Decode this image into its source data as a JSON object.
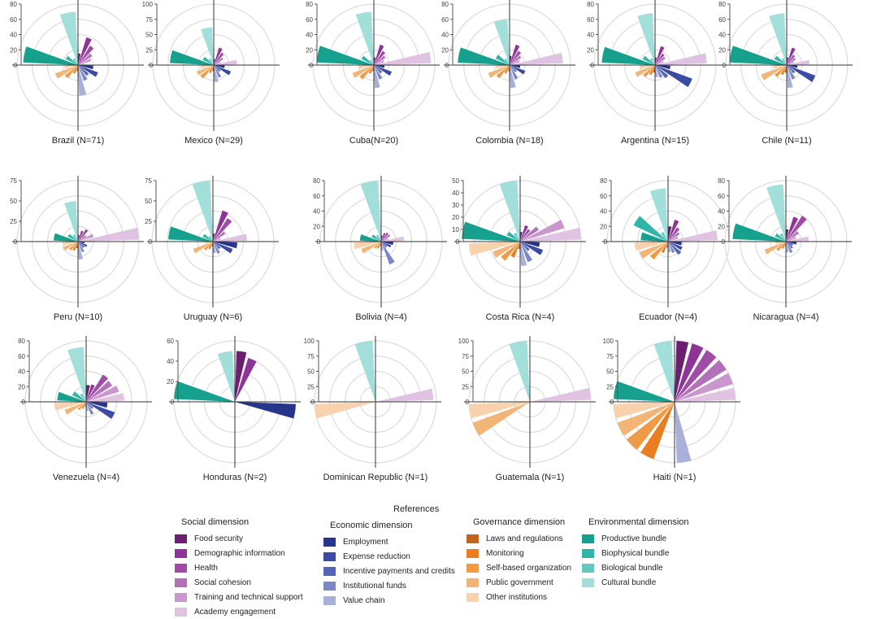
{
  "chart_data": {
    "type": "radial-bar",
    "title": "References",
    "category_groups": [
      {
        "name": "Social dimension",
        "categories": [
          {
            "label": "Food security",
            "color": "#6b1f6e"
          },
          {
            "label": "Demographic information",
            "color": "#8e3497"
          },
          {
            "label": "Health",
            "color": "#a04ca6"
          },
          {
            "label": "Social cohesion",
            "color": "#b46fb9"
          },
          {
            "label": "Training and technical support",
            "color": "#c996cd"
          },
          {
            "label": "Academy engagement",
            "color": "#e0c3e2"
          }
        ]
      },
      {
        "name": "Economic dimension",
        "categories": [
          {
            "label": "Employment",
            "color": "#27348b"
          },
          {
            "label": "Expense reduction",
            "color": "#3b4aa3"
          },
          {
            "label": "Incentive payments and credits",
            "color": "#5564b4"
          },
          {
            "label": "Institutional funds",
            "color": "#7c87c6"
          },
          {
            "label": "Value chain",
            "color": "#a9b0da"
          }
        ]
      },
      {
        "name": "Governance dimension",
        "categories": [
          {
            "label": "Laws and regulations",
            "color": "#c0641f"
          },
          {
            "label": "Monitoring",
            "color": "#e97d1f"
          },
          {
            "label": "Self-based organization",
            "color": "#ef9a45"
          },
          {
            "label": "Public government",
            "color": "#f3b577"
          },
          {
            "label": "Other institutions",
            "color": "#f8d2ac"
          }
        ]
      },
      {
        "name": "Environmental dimension",
        "categories": [
          {
            "label": "Productive bundle",
            "color": "#16a08e"
          },
          {
            "label": "Biophysical bundle",
            "color": "#2fb6a8"
          },
          {
            "label": "Biological bundle",
            "color": "#62c8c0"
          },
          {
            "label": "Cultural bundle",
            "color": "#a2dfdb"
          }
        ]
      }
    ],
    "panels": [
      {
        "label": "Brazil (N=71)",
        "ticks": [
          "80",
          "60",
          "40",
          "20",
          "0"
        ],
        "ymax": 80,
        "values": {
          "social": [
            15,
            38,
            30,
            22,
            18,
            8
          ],
          "economic": [
            20,
            28,
            18,
            22,
            40
          ],
          "governance": [
            8,
            12,
            22,
            32,
            18
          ],
          "environmental": [
            72,
            18,
            10,
            70
          ]
        }
      },
      {
        "label": "Mexico (N=29)",
        "ticks": [
          "100",
          "75",
          "50",
          "25",
          "0"
        ],
        "ymax": 100,
        "values": {
          "social": [
            10,
            30,
            24,
            18,
            12,
            38
          ],
          "economic": [
            18,
            30,
            14,
            22,
            28
          ],
          "governance": [
            10,
            14,
            28,
            30,
            22
          ],
          "environmental": [
            72,
            20,
            12,
            62
          ]
        }
      },
      {
        "label": "Cuba(N=20)",
        "ticks": [
          "80",
          "60",
          "40",
          "20",
          "0"
        ],
        "ymax": 80,
        "values": {
          "social": [
            10,
            28,
            22,
            18,
            14,
            75
          ],
          "economic": [
            14,
            25,
            14,
            20,
            30
          ],
          "governance": [
            8,
            12,
            24,
            30,
            20
          ],
          "environmental": [
            75,
            18,
            8,
            70
          ]
        }
      },
      {
        "label": "Colombia (N=18)",
        "ticks": [
          "80",
          "60",
          "40",
          "20",
          "0"
        ],
        "ymax": 80,
        "values": {
          "social": [
            12,
            28,
            22,
            18,
            14,
            70
          ],
          "economic": [
            14,
            22,
            12,
            20,
            30
          ],
          "governance": [
            8,
            12,
            22,
            30,
            18
          ],
          "environmental": [
            68,
            20,
            10,
            60
          ]
        }
      },
      {
        "label": "Argentina (N=15)",
        "ticks": [
          "80",
          "60",
          "40",
          "20",
          "0"
        ],
        "ymax": 80,
        "values": {
          "social": [
            10,
            26,
            18,
            16,
            12,
            68
          ],
          "economic": [
            20,
            52,
            22,
            18,
            16
          ],
          "governance": [
            10,
            14,
            20,
            28,
            20
          ],
          "environmental": [
            70,
            18,
            10,
            68
          ]
        }
      },
      {
        "label": "Chile (N=11)",
        "ticks": [
          "80",
          "60",
          "40",
          "20",
          "0"
        ],
        "ymax": 80,
        "values": {
          "social": [
            10,
            24,
            16,
            14,
            10,
            30
          ],
          "economic": [
            14,
            40,
            14,
            20,
            30
          ],
          "governance": [
            10,
            14,
            20,
            36,
            18
          ],
          "environmental": [
            75,
            18,
            10,
            68
          ]
        }
      },
      {
        "label": "Peru (N=10)",
        "ticks": [
          "75",
          "50",
          "25",
          "0"
        ],
        "ymax": 75,
        "values": {
          "social": [
            8,
            14,
            18,
            12,
            20,
            75
          ],
          "economic": [
            8,
            12,
            10,
            14,
            22
          ],
          "governance": [
            8,
            12,
            14,
            20,
            18
          ],
          "environmental": [
            30,
            14,
            10,
            50
          ]
        }
      },
      {
        "label": "Uruguay (N=6)",
        "ticks": [
          "75",
          "50",
          "25",
          "0"
        ],
        "ymax": 75,
        "values": {
          "social": [
            10,
            40,
            34,
            18,
            10,
            42
          ],
          "economic": [
            30,
            26,
            12,
            16,
            14
          ],
          "governance": [
            6,
            10,
            14,
            26,
            10
          ],
          "environmental": [
            55,
            14,
            8,
            80
          ]
        }
      },
      {
        "label": "Bolivia (N=4)",
        "ticks": [
          "80",
          "60",
          "40",
          "20",
          "0"
        ],
        "ymax": 80,
        "values": {
          "social": [
            8,
            12,
            14,
            14,
            10,
            30
          ],
          "economic": [
            16,
            14,
            10,
            32,
            12
          ],
          "governance": [
            6,
            10,
            12,
            28,
            36
          ],
          "environmental": [
            28,
            14,
            10,
            80
          ]
        }
      },
      {
        "label": "Costa Rica (N=4)",
        "ticks": [
          "50",
          "40",
          "30",
          "20",
          "10",
          "0"
        ],
        "ymax": 50,
        "values": {
          "social": [
            8,
            14,
            12,
            18,
            38,
            50
          ],
          "economic": [
            16,
            20,
            10,
            18,
            20
          ],
          "governance": [
            6,
            14,
            20,
            24,
            42
          ],
          "environmental": [
            48,
            12,
            8,
            50
          ]
        }
      },
      {
        "label": "Ecuador (N=4)",
        "ticks": [
          "80",
          "60",
          "40",
          "20",
          "0"
        ],
        "ymax": 80,
        "values": {
          "social": [
            20,
            30,
            22,
            18,
            14,
            65
          ],
          "economic": [
            18,
            20,
            22,
            16,
            14
          ],
          "governance": [
            8,
            16,
            30,
            40,
            44
          ],
          "environmental": [
            36,
            50,
            14,
            70
          ]
        }
      },
      {
        "label": "Nicaragua (N=4)",
        "ticks": [
          "80",
          "60",
          "40",
          "20",
          "0"
        ],
        "ymax": 80,
        "values": {
          "social": [
            16,
            34,
            40,
            20,
            14,
            30
          ],
          "economic": [
            14,
            10,
            12,
            16,
            14
          ],
          "governance": [
            6,
            10,
            16,
            30,
            14
          ],
          "environmental": [
            70,
            16,
            12,
            75
          ]
        }
      },
      {
        "label": "Venezuela (N=4)",
        "ticks": [
          "80",
          "60",
          "40",
          "20",
          "0"
        ],
        "ymax": 80,
        "values": {
          "social": [
            22,
            24,
            42,
            40,
            45,
            50
          ],
          "economic": [
            28,
            40,
            12,
            18,
            12
          ],
          "governance": [
            6,
            10,
            14,
            30,
            42
          ],
          "environmental": [
            38,
            20,
            12,
            72
          ]
        }
      },
      {
        "label": "Honduras (N=2)",
        "ticks": [
          "60",
          "40",
          "20",
          "0"
        ],
        "ymax": 60,
        "values": {
          "social": [
            50,
            45,
            0,
            0,
            0,
            0
          ],
          "economic": [
            60,
            0,
            0,
            0,
            0
          ],
          "governance": [
            0,
            0,
            0,
            0,
            0
          ],
          "environmental": [
            60,
            0,
            0,
            50
          ]
        }
      },
      {
        "label": "Dominican Republic (N=1)",
        "ticks": [
          "100",
          "75",
          "50",
          "25",
          "0"
        ],
        "ymax": 100,
        "values": {
          "social": [
            0,
            0,
            0,
            0,
            0,
            95
          ],
          "economic": [
            0,
            0,
            0,
            0,
            0
          ],
          "governance": [
            0,
            0,
            0,
            0,
            100
          ],
          "environmental": [
            0,
            0,
            0,
            100
          ]
        }
      },
      {
        "label": "Guatemala (N=1)",
        "ticks": [
          "100",
          "75",
          "50",
          "25",
          "0"
        ],
        "ymax": 100,
        "values": {
          "social": [
            0,
            0,
            0,
            0,
            0,
            100
          ],
          "economic": [
            0,
            0,
            0,
            0,
            0
          ],
          "governance": [
            0,
            0,
            0,
            100,
            100
          ],
          "environmental": [
            0,
            0,
            0,
            100
          ]
        }
      },
      {
        "label": "Haiti (N=1)",
        "ticks": [
          "100",
          "75",
          "50",
          "25",
          "0"
        ],
        "ymax": 100,
        "values": {
          "social": [
            100,
            100,
            100,
            100,
            100,
            100
          ],
          "economic": [
            0,
            0,
            0,
            0,
            100
          ],
          "governance": [
            0,
            100,
            100,
            100,
            100
          ],
          "environmental": [
            100,
            0,
            0,
            100
          ]
        }
      }
    ]
  }
}
